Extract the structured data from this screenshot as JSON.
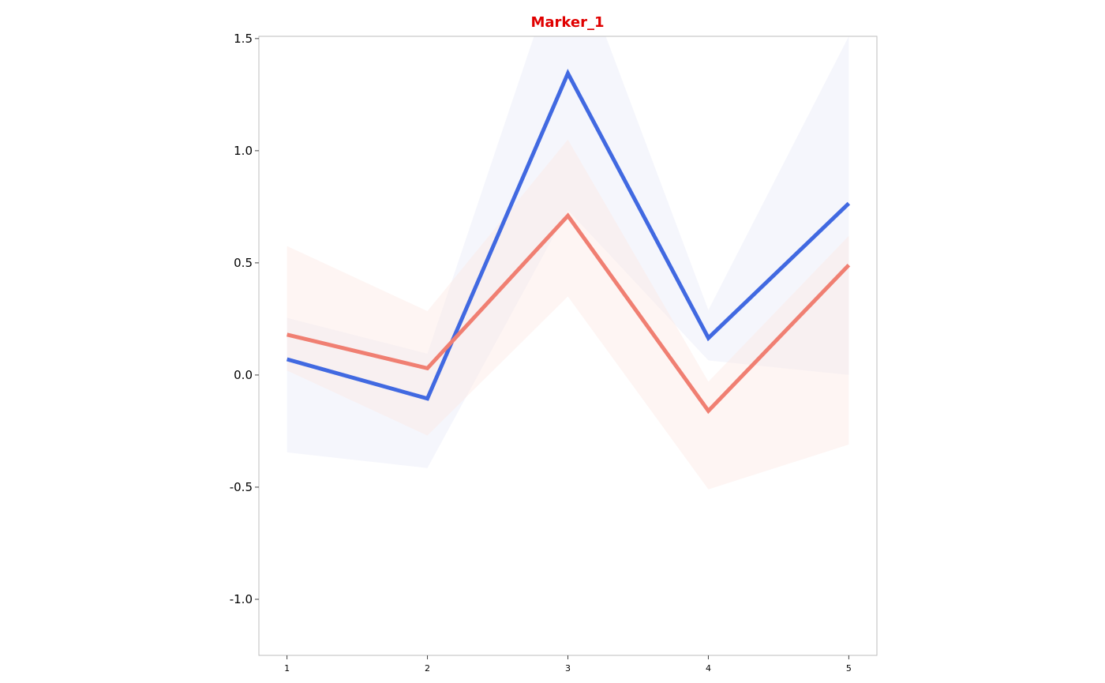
{
  "chart_data": {
    "type": "line",
    "title": "Marker_1",
    "title_color": "#e00000",
    "xlabel": "",
    "ylabel": "",
    "x": [
      1,
      2,
      3,
      4,
      5
    ],
    "xticks": [
      "1",
      "2",
      "3",
      "4",
      "5"
    ],
    "yticks": [
      "1.5",
      "1.0",
      "0.5",
      "0.0",
      "-0.5",
      "-1.0"
    ],
    "ytick_values": [
      1.5,
      1.0,
      0.5,
      0.0,
      -0.5,
      -1.0
    ],
    "xlim": [
      0.8,
      5.2
    ],
    "ylim": [
      -1.25,
      1.51
    ],
    "grid": false,
    "series": [
      {
        "color": "#4169e1",
        "values": [
          0.07,
          -0.105,
          1.345,
          0.165,
          0.765
        ],
        "band_lower": [
          -0.345,
          -0.415,
          0.735,
          0.065,
          0.0
        ],
        "band_upper": [
          0.255,
          0.095,
          1.96,
          0.29,
          1.51
        ],
        "band_color": "#e8ebf8"
      },
      {
        "color": "#f07f72",
        "values": [
          0.18,
          0.03,
          0.71,
          -0.16,
          0.49
        ],
        "band_lower": [
          0.02,
          -0.27,
          0.35,
          -0.51,
          -0.31
        ],
        "band_upper": [
          0.575,
          0.285,
          1.05,
          -0.03,
          0.62
        ],
        "band_color": "#fde9e5"
      }
    ]
  }
}
